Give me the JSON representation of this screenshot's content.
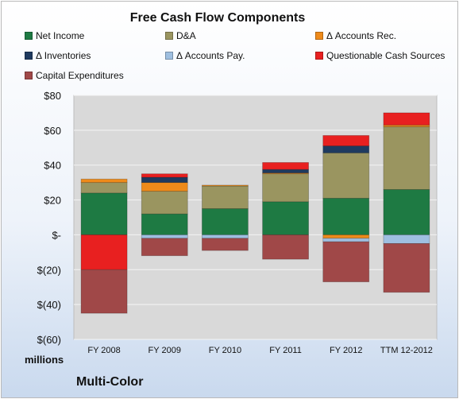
{
  "chart_data": {
    "type": "bar",
    "stacked": true,
    "title": "Free Cash Flow Components",
    "categories": [
      "FY 2008",
      "FY 2009",
      "FY 2010",
      "FY 2011",
      "FY 2012",
      "TTM 12-2012"
    ],
    "series": [
      {
        "name": "Net Income",
        "color": "#1e7a43",
        "values": [
          24,
          12,
          15,
          19,
          21,
          26
        ]
      },
      {
        "name": "D&A",
        "color": "#9a9560",
        "values": [
          6,
          13,
          13,
          16,
          26,
          36
        ]
      },
      {
        "name": "Δ Accounts Rec.",
        "color": "#ee8a1a",
        "values": [
          2,
          5,
          0.5,
          0.5,
          -2,
          1
        ]
      },
      {
        "name": "Δ Inventories",
        "color": "#1f3a5f",
        "values": [
          0,
          3,
          0,
          2,
          4,
          0
        ]
      },
      {
        "name": "Δ Accounts Pay.",
        "color": "#9fbfe0",
        "values": [
          0,
          -2,
          -2,
          0,
          -2,
          -5
        ]
      },
      {
        "name": "Questionable Cash Sources",
        "color": "#e82020",
        "values": [
          -20,
          2,
          0,
          4,
          6,
          7
        ]
      },
      {
        "name": "Capital Expenditures",
        "color": "#a04848",
        "values": [
          -25,
          -10,
          -7,
          -14,
          -23,
          -28
        ]
      }
    ],
    "ylim": [
      -60,
      80
    ],
    "yticks": [
      -60,
      -40,
      -20,
      0,
      20,
      40,
      60,
      80
    ],
    "ytick_labels": [
      "$(60)",
      "$(40)",
      "$(20)",
      "$-",
      "$20",
      "$40",
      "$60",
      "$80"
    ],
    "grid": true,
    "legend": "top"
  },
  "footer": {
    "units": "millions",
    "company": "Multi-Color"
  }
}
